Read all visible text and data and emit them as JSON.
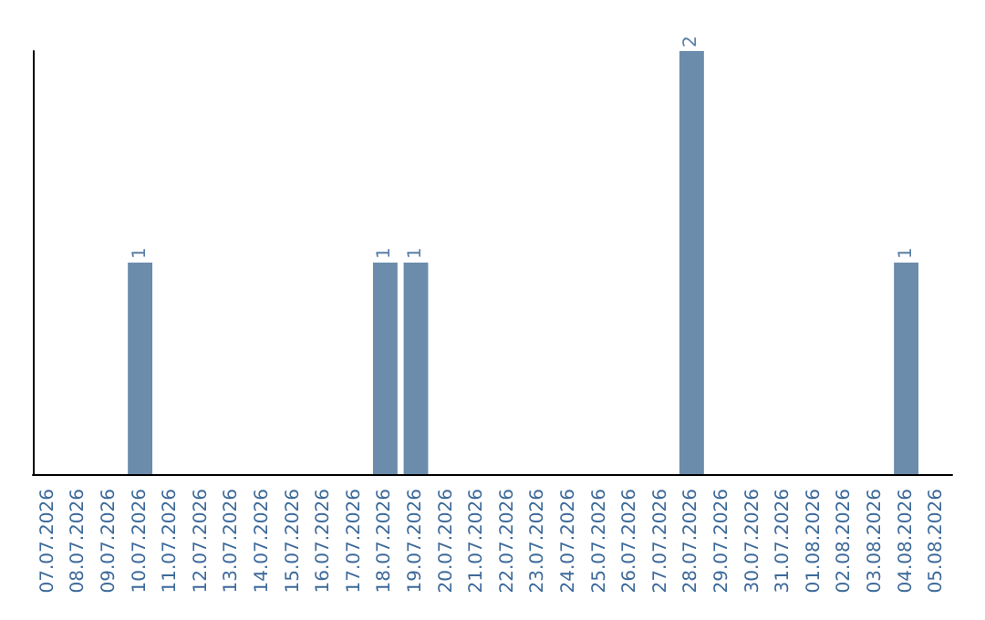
{
  "chart_data": {
    "type": "bar",
    "categories": [
      "07.07.2026",
      "08.07.2026",
      "09.07.2026",
      "10.07.2026",
      "11.07.2026",
      "12.07.2026",
      "13.07.2026",
      "14.07.2026",
      "15.07.2026",
      "16.07.2026",
      "17.07.2026",
      "18.07.2026",
      "19.07.2026",
      "20.07.2026",
      "21.07.2026",
      "22.07.2026",
      "23.07.2026",
      "24.07.2026",
      "25.07.2026",
      "26.07.2026",
      "27.07.2026",
      "28.07.2026",
      "29.07.2026",
      "30.07.2026",
      "31.07.2026",
      "01.08.2026",
      "02.08.2026",
      "03.08.2026",
      "04.08.2026",
      "05.08.2026"
    ],
    "values": [
      0,
      0,
      0,
      1,
      0,
      0,
      0,
      0,
      0,
      0,
      0,
      1,
      1,
      0,
      0,
      0,
      0,
      0,
      0,
      0,
      0,
      2,
      0,
      0,
      0,
      0,
      0,
      0,
      1,
      0
    ],
    "value_labels": [
      null,
      null,
      null,
      "1",
      null,
      null,
      null,
      null,
      null,
      null,
      null,
      "1",
      "1",
      null,
      null,
      null,
      null,
      null,
      null,
      null,
      null,
      "2",
      null,
      null,
      null,
      null,
      null,
      null,
      "1",
      null
    ],
    "color": "#6b8cab",
    "grid": false,
    "tick_labels": "x"
  }
}
